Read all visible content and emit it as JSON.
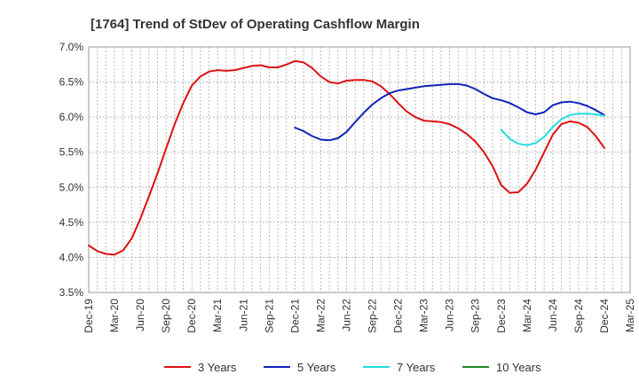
{
  "chart_data": {
    "type": "line",
    "title": "[1764]  Trend of StDev of Operating Cashflow Margin",
    "xlabel": "",
    "ylabel": "",
    "ylim": [
      3.5,
      7.0
    ],
    "y_ticks": [
      "3.5%",
      "4.0%",
      "4.5%",
      "5.0%",
      "5.5%",
      "6.0%",
      "6.5%",
      "7.0%"
    ],
    "x_range": [
      "2019-12",
      "2025-03"
    ],
    "x_ticks": [
      "Dec-19",
      "Mar-20",
      "Jun-20",
      "Sep-20",
      "Dec-20",
      "Mar-21",
      "Jun-21",
      "Sep-21",
      "Dec-21",
      "Mar-22",
      "Jun-22",
      "Sep-22",
      "Dec-22",
      "Mar-23",
      "Jun-23",
      "Sep-23",
      "Dec-23",
      "Mar-24",
      "Jun-24",
      "Sep-24",
      "Dec-24",
      "Mar-25"
    ],
    "grid": true,
    "legend_position": "bottom",
    "series": [
      {
        "name": "3 Years",
        "color": "#dd1111",
        "points": [
          [
            "2019-12",
            4.17
          ],
          [
            "2020-01",
            4.09
          ],
          [
            "2020-02",
            4.05
          ],
          [
            "2020-03",
            4.04
          ],
          [
            "2020-04",
            4.1
          ],
          [
            "2020-05",
            4.27
          ],
          [
            "2020-06",
            4.55
          ],
          [
            "2020-07",
            4.87
          ],
          [
            "2020-08",
            5.2
          ],
          [
            "2020-09",
            5.55
          ],
          [
            "2020-10",
            5.9
          ],
          [
            "2020-11",
            6.2
          ],
          [
            "2020-12",
            6.45
          ],
          [
            "2021-01",
            6.58
          ],
          [
            "2021-02",
            6.65
          ],
          [
            "2021-03",
            6.67
          ],
          [
            "2021-04",
            6.66
          ],
          [
            "2021-05",
            6.67
          ],
          [
            "2021-06",
            6.7
          ],
          [
            "2021-07",
            6.73
          ],
          [
            "2021-08",
            6.74
          ],
          [
            "2021-09",
            6.71
          ],
          [
            "2021-10",
            6.71
          ],
          [
            "2021-11",
            6.75
          ],
          [
            "2021-12",
            6.8
          ],
          [
            "2022-01",
            6.78
          ],
          [
            "2022-02",
            6.7
          ],
          [
            "2022-03",
            6.58
          ],
          [
            "2022-04",
            6.5
          ],
          [
            "2022-05",
            6.48
          ],
          [
            "2022-06",
            6.52
          ],
          [
            "2022-07",
            6.53
          ],
          [
            "2022-08",
            6.53
          ],
          [
            "2022-09",
            6.51
          ],
          [
            "2022-10",
            6.44
          ],
          [
            "2022-11",
            6.33
          ],
          [
            "2022-12",
            6.2
          ],
          [
            "2023-01",
            6.08
          ],
          [
            "2023-02",
            6.0
          ],
          [
            "2023-03",
            5.95
          ],
          [
            "2023-04",
            5.94
          ],
          [
            "2023-05",
            5.93
          ],
          [
            "2023-06",
            5.9
          ],
          [
            "2023-07",
            5.84
          ],
          [
            "2023-08",
            5.76
          ],
          [
            "2023-09",
            5.65
          ],
          [
            "2023-10",
            5.5
          ],
          [
            "2023-11",
            5.3
          ],
          [
            "2023-12",
            5.03
          ],
          [
            "2024-01",
            4.92
          ],
          [
            "2024-02",
            4.93
          ],
          [
            "2024-03",
            5.05
          ],
          [
            "2024-04",
            5.25
          ],
          [
            "2024-05",
            5.5
          ],
          [
            "2024-06",
            5.75
          ],
          [
            "2024-07",
            5.9
          ],
          [
            "2024-08",
            5.94
          ],
          [
            "2024-09",
            5.92
          ],
          [
            "2024-10",
            5.86
          ],
          [
            "2024-11",
            5.73
          ],
          [
            "2024-12",
            5.56
          ]
        ]
      },
      {
        "name": "5 Years",
        "color": "#1122bb",
        "points": [
          [
            "2021-12",
            5.85
          ],
          [
            "2022-01",
            5.8
          ],
          [
            "2022-02",
            5.73
          ],
          [
            "2022-03",
            5.68
          ],
          [
            "2022-04",
            5.67
          ],
          [
            "2022-05",
            5.7
          ],
          [
            "2022-06",
            5.79
          ],
          [
            "2022-07",
            5.93
          ],
          [
            "2022-08",
            6.06
          ],
          [
            "2022-09",
            6.18
          ],
          [
            "2022-10",
            6.27
          ],
          [
            "2022-11",
            6.34
          ],
          [
            "2022-12",
            6.38
          ],
          [
            "2023-01",
            6.4
          ],
          [
            "2023-02",
            6.42
          ],
          [
            "2023-03",
            6.44
          ],
          [
            "2023-04",
            6.45
          ],
          [
            "2023-05",
            6.46
          ],
          [
            "2023-06",
            6.47
          ],
          [
            "2023-07",
            6.47
          ],
          [
            "2023-08",
            6.45
          ],
          [
            "2023-09",
            6.4
          ],
          [
            "2023-10",
            6.33
          ],
          [
            "2023-11",
            6.27
          ],
          [
            "2023-12",
            6.24
          ],
          [
            "2024-01",
            6.2
          ],
          [
            "2024-02",
            6.14
          ],
          [
            "2024-03",
            6.07
          ],
          [
            "2024-04",
            6.04
          ],
          [
            "2024-05",
            6.07
          ],
          [
            "2024-06",
            6.17
          ],
          [
            "2024-07",
            6.21
          ],
          [
            "2024-08",
            6.22
          ],
          [
            "2024-09",
            6.2
          ],
          [
            "2024-10",
            6.16
          ],
          [
            "2024-11",
            6.1
          ],
          [
            "2024-12",
            6.03
          ]
        ]
      },
      {
        "name": "7 Years",
        "color": "#22dddd",
        "points": [
          [
            "2023-12",
            5.82
          ],
          [
            "2024-01",
            5.69
          ],
          [
            "2024-02",
            5.62
          ],
          [
            "2024-03",
            5.6
          ],
          [
            "2024-04",
            5.63
          ],
          [
            "2024-05",
            5.72
          ],
          [
            "2024-06",
            5.86
          ],
          [
            "2024-07",
            5.97
          ],
          [
            "2024-08",
            6.03
          ],
          [
            "2024-09",
            6.05
          ],
          [
            "2024-10",
            6.05
          ],
          [
            "2024-11",
            6.04
          ],
          [
            "2024-12",
            6.02
          ]
        ]
      },
      {
        "name": "10 Years",
        "color": "#228822",
        "points": []
      }
    ]
  }
}
